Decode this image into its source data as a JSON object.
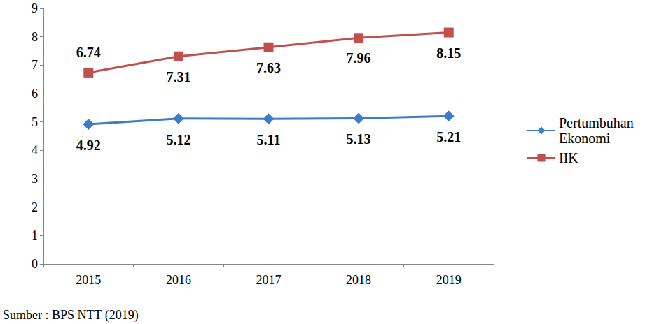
{
  "chart_data": {
    "type": "line",
    "categories": [
      "2015",
      "2016",
      "2017",
      "2018",
      "2019"
    ],
    "series": [
      {
        "name": "Pertumbuhan Ekonomi",
        "color": "#3c7cc8",
        "marker": "diamond",
        "values": [
          4.92,
          5.12,
          5.11,
          5.13,
          5.21
        ]
      },
      {
        "name": "IIK",
        "color": "#c0504d",
        "marker": "square",
        "values": [
          6.74,
          7.31,
          7.63,
          7.96,
          8.15
        ]
      }
    ],
    "ylim": [
      0,
      9
    ],
    "yticks": [
      0,
      1,
      2,
      3,
      4,
      5,
      6,
      7,
      8,
      9
    ],
    "grid": false,
    "legend": "right",
    "data_labels": true,
    "source": "Sumber : BPS NTT (2019)"
  }
}
